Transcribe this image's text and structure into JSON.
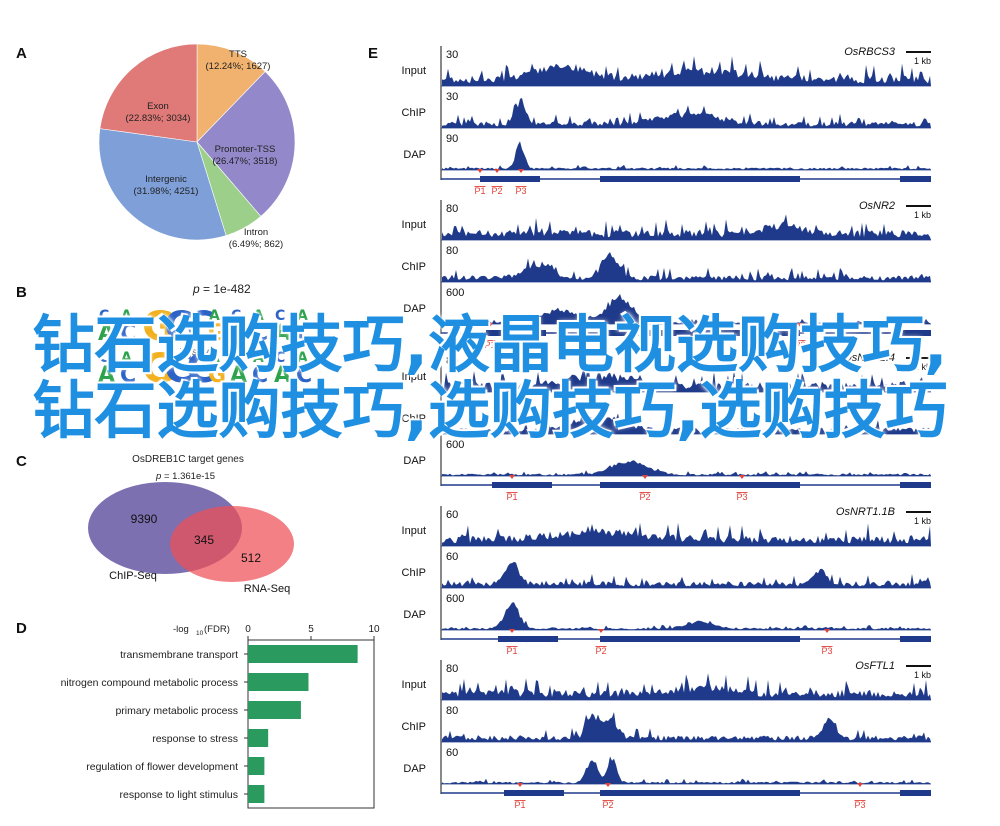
{
  "panels": {
    "a": "A",
    "b": "B",
    "c": "C",
    "d": "D",
    "e": "E"
  },
  "panel_a": {
    "slices": [
      {
        "name": "TTS",
        "stat": "(12.24%; 1627)",
        "pct": 12.24,
        "color": "#f0b26e"
      },
      {
        "name": "Promoter-TSS",
        "stat": "(26.47%; 3518)",
        "pct": 26.47,
        "color": "#9388c9"
      },
      {
        "name": "Intron",
        "stat": "(6.49%; 862)",
        "pct": 6.49,
        "color": "#9ccf8a"
      },
      {
        "name": "Intergenic",
        "stat": "(31.98%; 4251)",
        "pct": 31.98,
        "color": "#7e9fd8"
      },
      {
        "name": "Exon",
        "stat": "(22.83%; 3034)",
        "pct": 22.83,
        "color": "#e07a78"
      }
    ]
  },
  "panel_b": {
    "pvalue": "= 1e-482",
    "pvalue_prefix": "p",
    "positive_label": "Positive",
    "reverse_label": "Reverse",
    "logo_letters_top": [
      "A",
      "C",
      "G",
      "C",
      "C",
      "G",
      "A",
      "C",
      "A",
      "C"
    ],
    "logo_letters_bottom": [
      "A",
      "C",
      "G",
      "C",
      "C",
      "G",
      "A",
      "C",
      "A",
      "C"
    ]
  },
  "panel_c": {
    "title": "OsDREB1C target genes",
    "pvalue_prefix": "p",
    "pvalue": "= 1.361e-15",
    "left_only": "9390",
    "overlap": "345",
    "right_only": "512",
    "left_label": "ChIP-Seq",
    "right_label": "RNA-Seq"
  },
  "panel_d": {
    "axis_title": "-log",
    "axis_title_sub": "10",
    "axis_title_tail": "(FDR)",
    "ticks": [
      "0",
      "5",
      "10"
    ]
  },
  "chart_data": {
    "type": "bar",
    "orientation": "horizontal",
    "categories": [
      "transmembrane transport",
      "nitrogen compound metabolic process",
      "primary metabolic process",
      "response to stress",
      "regulation of flower development",
      "response to light stimulus"
    ],
    "values": [
      8.7,
      4.8,
      4.2,
      1.6,
      1.3,
      1.3
    ],
    "xlabel": "-log10(FDR)",
    "xlim": [
      0,
      10
    ],
    "color": "#2a9a5e"
  },
  "panel_e": {
    "scale_label": "1 kb",
    "track_color": "#1f3a8a",
    "tracks": [
      "Input",
      "ChIP",
      "DAP"
    ],
    "genes": [
      {
        "name": "OsRBCS3",
        "maxes": [
          "30",
          "30",
          "90"
        ],
        "peaks": [
          "P1",
          "P2",
          "P3"
        ]
      },
      {
        "name": "OsNR2",
        "maxes": [
          "80",
          "80",
          "600"
        ],
        "peaks": [
          "P1",
          "P2",
          "P3"
        ]
      },
      {
        "name": "OsNRT2.4",
        "maxes": [
          "80",
          "80",
          "600"
        ],
        "peaks": [
          "P1",
          "P2",
          "P3"
        ]
      },
      {
        "name": "OsNRT1.1B",
        "maxes": [
          "60",
          "60",
          "600"
        ],
        "peaks": [
          "P1",
          "P2",
          "P3"
        ]
      },
      {
        "name": "OsFTL1",
        "maxes": [
          "80",
          "80",
          "60"
        ],
        "peaks": [
          "P1",
          "P2",
          "P3"
        ]
      }
    ]
  },
  "overlay_text": "钻石选购技巧,液晶电视选购技巧,钻石选购技巧,选购技巧,选购技巧"
}
